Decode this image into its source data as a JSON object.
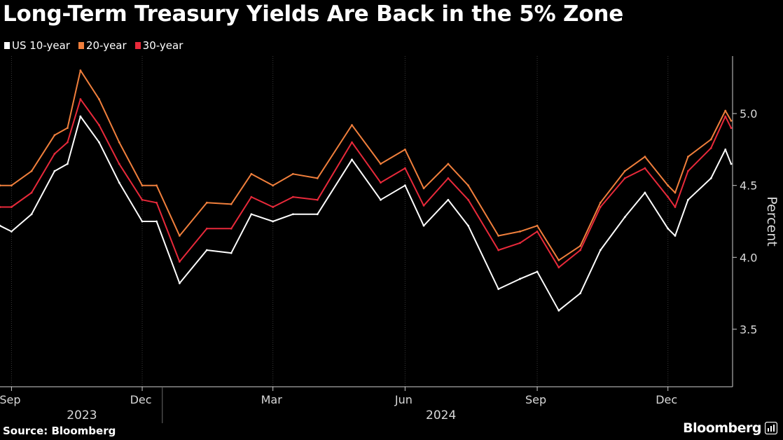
{
  "title": "Long-Term Treasury Yields Are Back in the 5% Zone",
  "source": "Source: Bloomberg",
  "brand": "Bloomberg",
  "brand_icon": "bloomberg-chart-icon",
  "chart_data": {
    "type": "line",
    "title": "Long-Term Treasury Yields Are Back in the 5% Zone",
    "ylabel": "Percent",
    "y_axis_position": "right",
    "ylim": [
      3.1,
      5.4
    ],
    "yticks": [
      3.5,
      4.0,
      4.5,
      5.0
    ],
    "ytick_labels": [
      "3.5",
      "4.0",
      "4.5",
      "5.0"
    ],
    "xlim": [
      "2023-08-24",
      "2025-01-15"
    ],
    "xticks": [
      "2023-09-01",
      "2023-12-01",
      "2024-03-01",
      "2024-06-01",
      "2024-09-01",
      "2024-12-01"
    ],
    "xtick_labels": [
      "Sep",
      "Dec",
      "Mar",
      "Jun",
      "Sep",
      "Dec"
    ],
    "year_labels": [
      {
        "label": "2023",
        "center": "2023-10-20"
      },
      {
        "label": "2024",
        "center": "2024-06-26"
      }
    ],
    "year_dividers": [
      "2023-12-15"
    ],
    "grid": "vertical",
    "legend_position": "top-left",
    "series": [
      {
        "name": "US 10-year",
        "color": "#ffffff",
        "x": [
          "2023-08-24",
          "2023-09-01",
          "2023-09-15",
          "2023-10-01",
          "2023-10-10",
          "2023-10-19",
          "2023-11-01",
          "2023-11-15",
          "2023-12-01",
          "2023-12-11",
          "2023-12-27",
          "2024-01-15",
          "2024-02-01",
          "2024-02-15",
          "2024-03-01",
          "2024-03-15",
          "2024-04-01",
          "2024-04-25",
          "2024-05-15",
          "2024-06-01",
          "2024-06-14",
          "2024-07-01",
          "2024-07-15",
          "2024-08-05",
          "2024-08-20",
          "2024-09-01",
          "2024-09-16",
          "2024-10-01",
          "2024-10-15",
          "2024-11-01",
          "2024-11-15",
          "2024-12-01",
          "2024-12-06",
          "2024-12-15",
          "2024-12-31",
          "2025-01-10",
          "2025-01-14"
        ],
        "y": [
          4.22,
          4.18,
          4.3,
          4.6,
          4.65,
          4.98,
          4.8,
          4.52,
          4.25,
          4.25,
          3.82,
          4.05,
          4.03,
          4.3,
          4.25,
          4.3,
          4.3,
          4.68,
          4.4,
          4.5,
          4.22,
          4.4,
          4.22,
          3.78,
          3.85,
          3.9,
          3.63,
          3.75,
          4.05,
          4.28,
          4.45,
          4.2,
          4.15,
          4.4,
          4.55,
          4.75,
          4.65
        ]
      },
      {
        "name": "20-year",
        "color": "#f07f3c",
        "x": [
          "2023-08-24",
          "2023-09-01",
          "2023-09-15",
          "2023-10-01",
          "2023-10-10",
          "2023-10-19",
          "2023-11-01",
          "2023-11-15",
          "2023-12-01",
          "2023-12-11",
          "2023-12-27",
          "2024-01-15",
          "2024-02-01",
          "2024-02-15",
          "2024-03-01",
          "2024-03-15",
          "2024-04-01",
          "2024-04-25",
          "2024-05-15",
          "2024-06-01",
          "2024-06-14",
          "2024-07-01",
          "2024-07-15",
          "2024-08-05",
          "2024-08-20",
          "2024-09-01",
          "2024-09-16",
          "2024-10-01",
          "2024-10-15",
          "2024-11-01",
          "2024-11-15",
          "2024-12-01",
          "2024-12-06",
          "2024-12-15",
          "2024-12-31",
          "2025-01-10",
          "2025-01-14"
        ],
        "y": [
          4.5,
          4.5,
          4.6,
          4.85,
          4.9,
          5.3,
          5.1,
          4.8,
          4.5,
          4.5,
          4.15,
          4.38,
          4.37,
          4.58,
          4.5,
          4.58,
          4.55,
          4.92,
          4.65,
          4.75,
          4.48,
          4.65,
          4.5,
          4.15,
          4.18,
          4.22,
          3.98,
          4.08,
          4.38,
          4.6,
          4.7,
          4.5,
          4.45,
          4.7,
          4.82,
          5.02,
          4.95
        ]
      },
      {
        "name": "30-year",
        "color": "#e8293a",
        "x": [
          "2023-08-24",
          "2023-09-01",
          "2023-09-15",
          "2023-10-01",
          "2023-10-10",
          "2023-10-19",
          "2023-11-01",
          "2023-11-15",
          "2023-12-01",
          "2023-12-11",
          "2023-12-27",
          "2024-01-15",
          "2024-02-01",
          "2024-02-15",
          "2024-03-01",
          "2024-03-15",
          "2024-04-01",
          "2024-04-25",
          "2024-05-15",
          "2024-06-01",
          "2024-06-14",
          "2024-07-01",
          "2024-07-15",
          "2024-08-05",
          "2024-08-20",
          "2024-09-01",
          "2024-09-16",
          "2024-10-01",
          "2024-10-15",
          "2024-11-01",
          "2024-11-15",
          "2024-12-01",
          "2024-12-06",
          "2024-12-15",
          "2024-12-31",
          "2025-01-10",
          "2025-01-14"
        ],
        "y": [
          4.35,
          4.35,
          4.45,
          4.72,
          4.8,
          5.1,
          4.92,
          4.65,
          4.4,
          4.38,
          3.97,
          4.2,
          4.2,
          4.42,
          4.35,
          4.42,
          4.4,
          4.8,
          4.52,
          4.62,
          4.36,
          4.55,
          4.4,
          4.05,
          4.1,
          4.18,
          3.93,
          4.05,
          4.35,
          4.55,
          4.62,
          4.42,
          4.35,
          4.6,
          4.76,
          4.98,
          4.9
        ]
      }
    ]
  }
}
